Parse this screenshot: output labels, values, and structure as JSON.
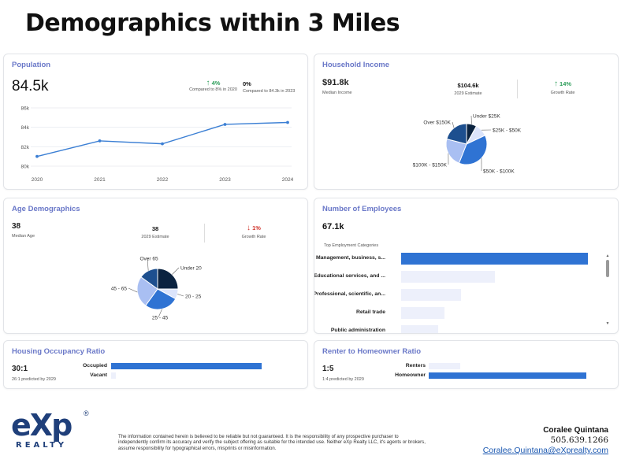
{
  "page": {
    "title": "Demographics within 3 Miles"
  },
  "population": {
    "title": "Population",
    "value": "84.5k",
    "stats": [
      {
        "value": "4%",
        "arrow": "↑",
        "label": "Compared to 8% in 2020"
      },
      {
        "value": "0%",
        "arrow": "",
        "label": "Compared to 84.3k in 2023"
      }
    ],
    "chart_data": {
      "type": "line",
      "x": [
        "2020",
        "2021",
        "2022",
        "2023",
        "2024"
      ],
      "values": [
        81.0,
        82.6,
        82.3,
        84.3,
        84.5
      ],
      "y_ticks": [
        "80k",
        "82k",
        "84k",
        "86k"
      ],
      "ylim": [
        80,
        86
      ],
      "title": "",
      "xlabel": "",
      "ylabel": ""
    }
  },
  "household_income": {
    "title": "Household Income",
    "median": {
      "value": "$91.8k",
      "label": "Median Income"
    },
    "estimate": {
      "value": "$104.6k",
      "label": "2029 Estimate"
    },
    "growth": {
      "value": "14%",
      "arrow": "↑",
      "label": "Growth Rate"
    },
    "chart_data": {
      "type": "pie",
      "labels": [
        "Under $25K",
        "$25K - $50K",
        "$50K - $100K",
        "$100K - $150K",
        "Over $150K"
      ],
      "values": [
        8,
        10,
        38,
        23,
        21
      ],
      "colors": [
        "#0b2340",
        "#dbe4fb",
        "#2f73d3",
        "#a9bff2",
        "#1d4f8f"
      ]
    }
  },
  "age": {
    "title": "Age Demographics",
    "median": {
      "value": "38",
      "label": "Median Age"
    },
    "estimate": {
      "value": "38",
      "label": "2029 Estimate"
    },
    "growth": {
      "value": "1%",
      "arrow": "↓",
      "label": "Growth Rate"
    },
    "chart_data": {
      "type": "pie",
      "labels": [
        "Under 20",
        "20 - 25",
        "25 - 45",
        "45 - 65",
        "Over 65"
      ],
      "values": [
        25,
        8,
        27,
        25,
        15
      ],
      "colors": [
        "#0b2340",
        "#dbe4fb",
        "#2f73d3",
        "#a9bff2",
        "#1d4f8f"
      ]
    }
  },
  "employees": {
    "title": "Number of Employees",
    "value": "67.1k",
    "subtitle": "Top Employment Categories",
    "chart_data": {
      "type": "bar",
      "categories": [
        "Management, business, s...",
        "Educational services, and ...",
        "Professional, scientific, an...",
        "Retail trade",
        "Public administration"
      ],
      "values": [
        100,
        50,
        32,
        23,
        20
      ]
    }
  },
  "housing": {
    "title": "Housing Occupancy Ratio",
    "ratio": "30:1",
    "predicted": "26:1 predicted by 2029",
    "chart_data": {
      "type": "bar",
      "categories": [
        "Occupied",
        "Vacant"
      ],
      "values": [
        97,
        3
      ]
    }
  },
  "renter": {
    "title": "Renter to Homeowner Ratio",
    "ratio": "1:5",
    "predicted": "1:4 predicted by 2029",
    "chart_data": {
      "type": "bar",
      "categories": [
        "Renters",
        "Homeowner"
      ],
      "values": [
        20,
        100
      ]
    }
  },
  "footer": {
    "logo_text": "eXp",
    "logo_sub": "REALTY",
    "logo_mark": "®",
    "disclaimer": "The information contained herein is believed to be reliable but not guaranteed. It is the responsibility of any prospective purchaser to independently confirm its accuracy and verify the subject offering as suitable for the intended use. Neither eXp Realty LLC, it's agents or brokers, assume responsibility for typographical errors, misprints or misinformation.",
    "agent_name": "Coralee Quintana",
    "agent_phone": "505.639.1266",
    "agent_email": "Coralee.Quintana@eXprealty.com"
  },
  "colors": {
    "accent": "#6a78c8",
    "bar": "#2f73d3",
    "bar_light": "#edf0fb",
    "up": "#2e9e5b",
    "down": "#d0342c",
    "logo": "#1f3f7a"
  }
}
